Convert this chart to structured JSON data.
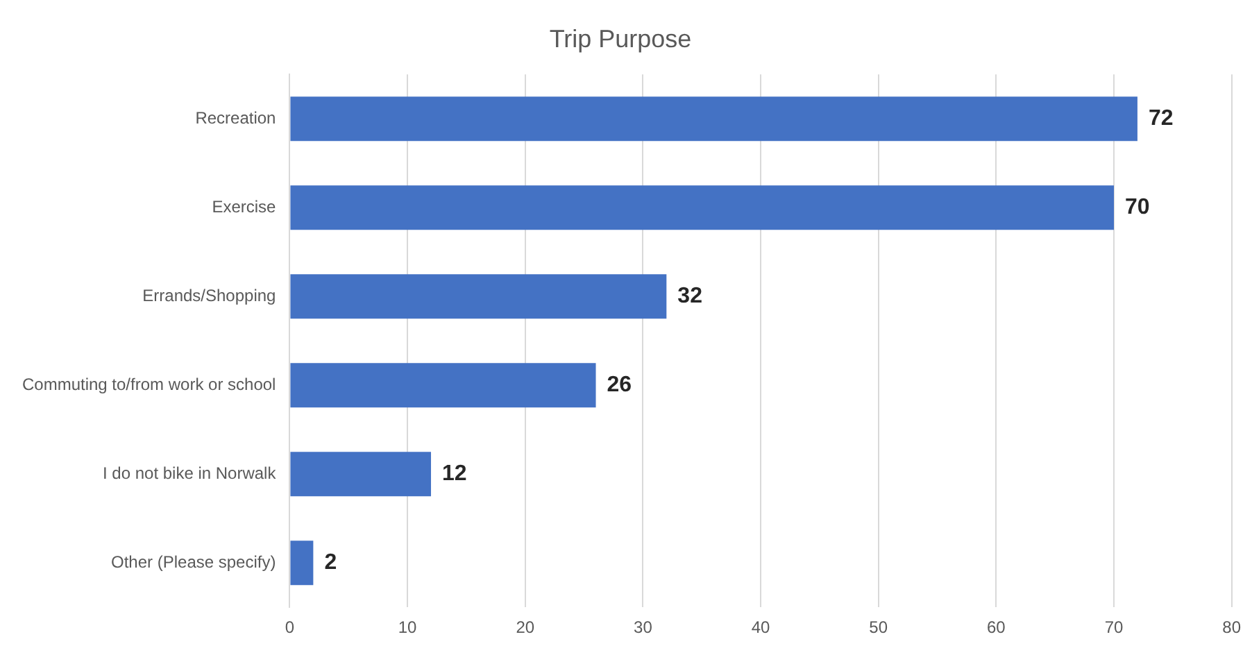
{
  "chart_data": {
    "type": "bar",
    "orientation": "horizontal",
    "title": "Trip Purpose",
    "categories": [
      "Recreation",
      "Exercise",
      "Errands/Shopping",
      "Commuting to/from work or school",
      "I do not bike in Norwalk",
      "Other (Please specify)"
    ],
    "values": [
      72,
      70,
      32,
      26,
      12,
      2
    ],
    "color": "#4472c4",
    "xlim": [
      0,
      80
    ],
    "xticks": [
      0,
      10,
      20,
      30,
      40,
      50,
      60,
      70,
      80
    ],
    "grid": "x",
    "data_labels": true,
    "legend": false
  }
}
